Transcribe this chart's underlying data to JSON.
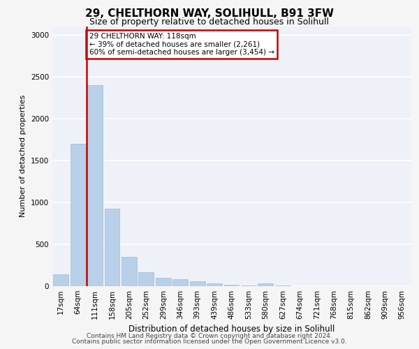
{
  "title1": "29, CHELTHORN WAY, SOLIHULL, B91 3FW",
  "title2": "Size of property relative to detached houses in Solihull",
  "xlabel": "Distribution of detached houses by size in Solihull",
  "ylabel": "Number of detached properties",
  "categories": [
    "17sqm",
    "64sqm",
    "111sqm",
    "158sqm",
    "205sqm",
    "252sqm",
    "299sqm",
    "346sqm",
    "393sqm",
    "439sqm",
    "486sqm",
    "533sqm",
    "580sqm",
    "627sqm",
    "674sqm",
    "721sqm",
    "768sqm",
    "815sqm",
    "862sqm",
    "909sqm",
    "956sqm"
  ],
  "values": [
    140,
    1700,
    2400,
    920,
    350,
    165,
    100,
    80,
    55,
    30,
    20,
    5,
    30,
    5,
    0,
    0,
    0,
    0,
    0,
    0,
    0
  ],
  "bar_color": "#b8d0e8",
  "bar_edge_color": "#a0bcd8",
  "vline_color": "#cc0000",
  "annotation_text": "29 CHELTHORN WAY: 118sqm\n← 39% of detached houses are smaller (2,261)\n60% of semi-detached houses are larger (3,454) →",
  "annotation_box_edgecolor": "#cc0000",
  "ylim": [
    0,
    3100
  ],
  "yticks": [
    0,
    500,
    1000,
    1500,
    2000,
    2500,
    3000
  ],
  "footer1": "Contains HM Land Registry data © Crown copyright and database right 2024.",
  "footer2": "Contains public sector information licensed under the Open Government Licence v3.0.",
  "plot_bg_color": "#eef2f8",
  "fig_bg_color": "#f5f5f5",
  "grid_color": "#ffffff",
  "title1_fontsize": 11,
  "title2_fontsize": 9,
  "ylabel_fontsize": 8,
  "xlabel_fontsize": 8.5,
  "tick_fontsize": 7.5,
  "footer_fontsize": 6.5
}
